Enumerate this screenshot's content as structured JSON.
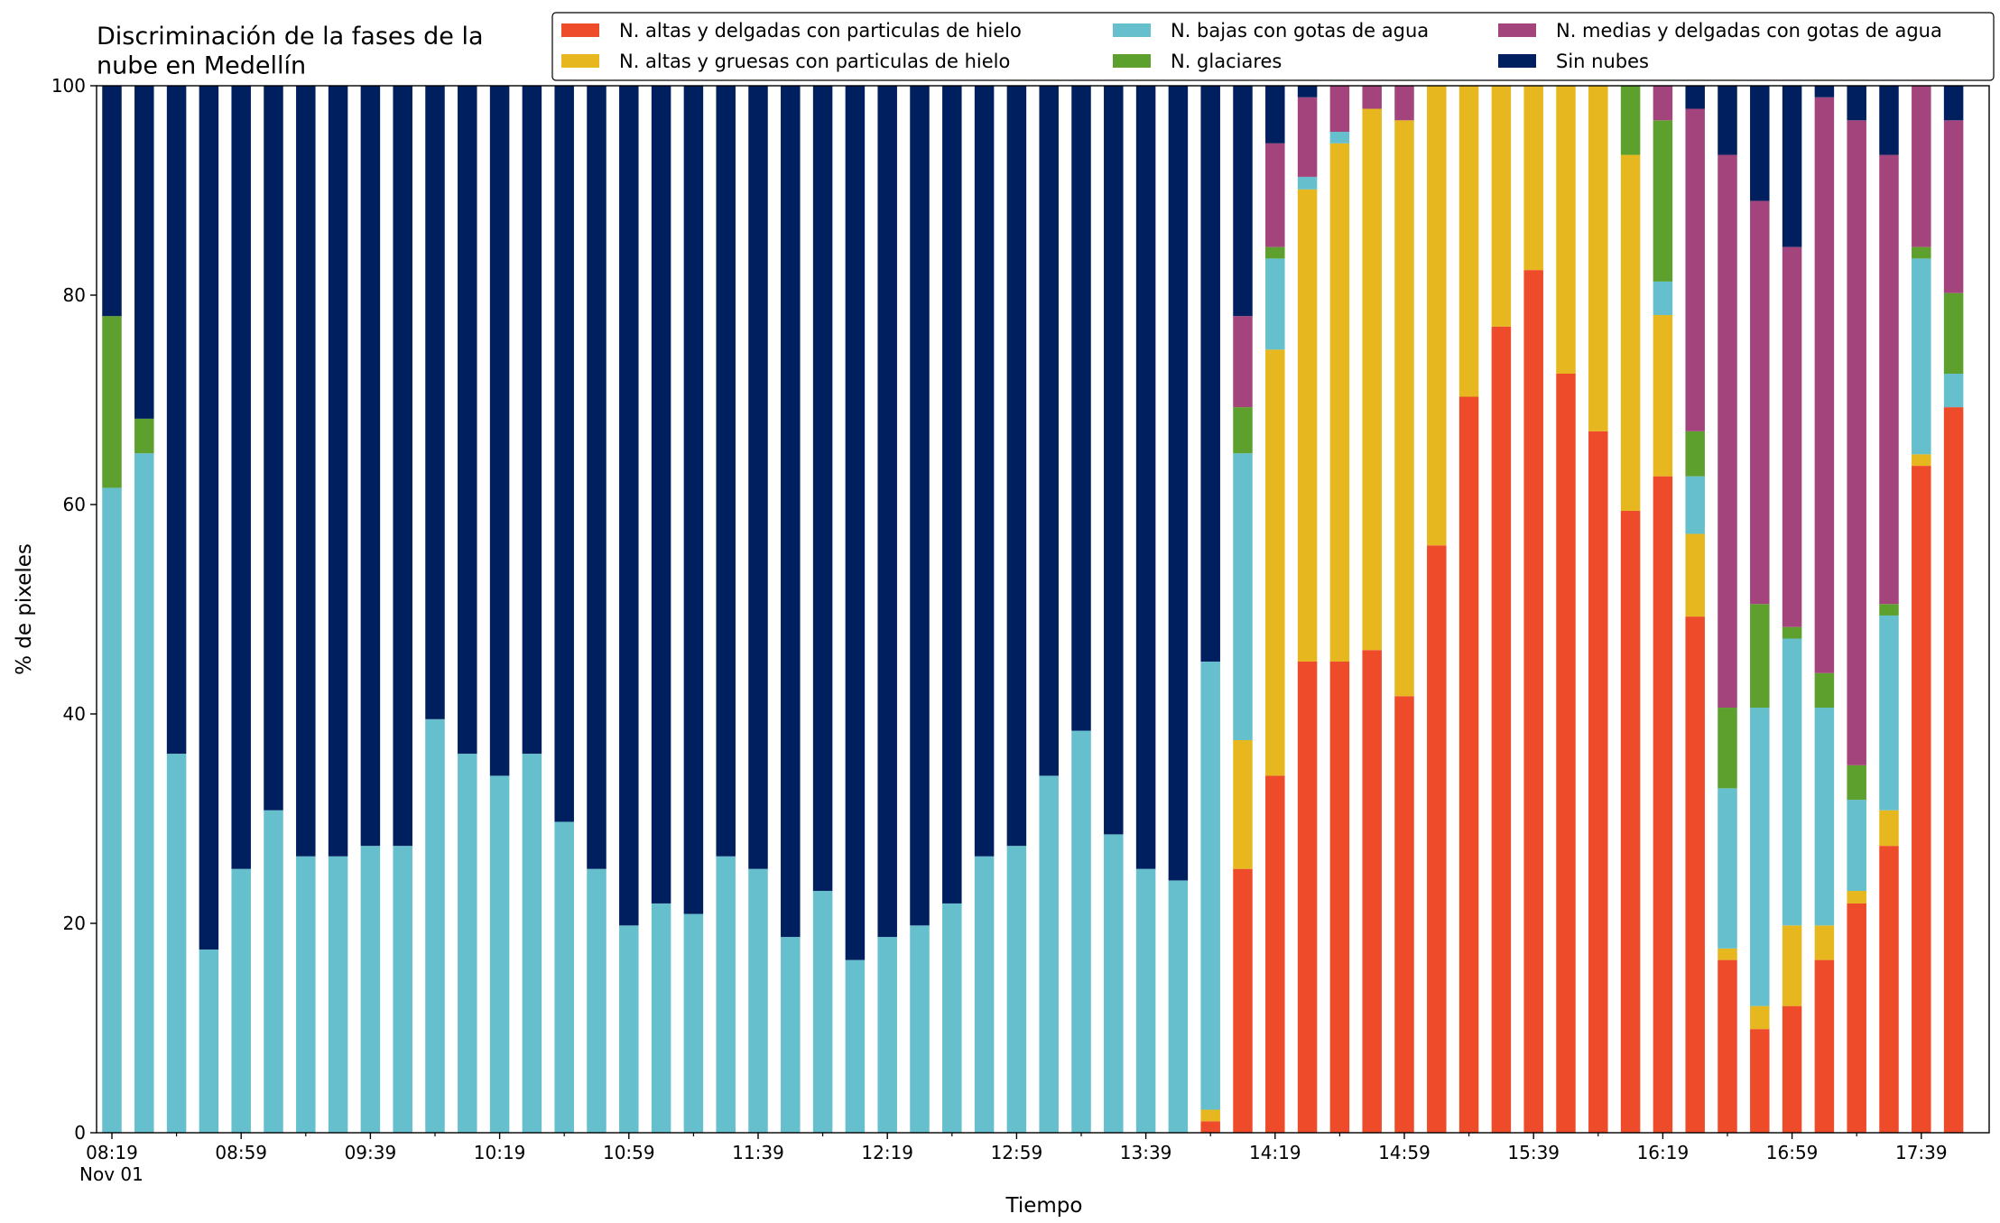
{
  "chart_data": {
    "type": "stacked_bar",
    "title": "Discriminación de la fases de la\nnube en Medellín",
    "x_label": "Tiempo",
    "y_label": "% de pixeles",
    "x_sublabel": "Nov 01",
    "categories": [
      "08:19",
      null,
      null,
      null,
      "08:59",
      null,
      null,
      null,
      "09:39",
      null,
      null,
      null,
      "10:19",
      null,
      null,
      null,
      "10:59",
      null,
      null,
      null,
      "11:39",
      null,
      null,
      null,
      "12:19",
      null,
      null,
      null,
      "12:59",
      null,
      null,
      null,
      "13:39",
      null,
      null,
      null,
      "14:19",
      null,
      null,
      null,
      "14:59",
      null,
      null,
      null,
      "15:39",
      null,
      null,
      null,
      "16:19",
      null,
      null,
      null,
      "16:59",
      null,
      null,
      null,
      "17:39",
      null
    ],
    "ylim": [
      0,
      100
    ],
    "yticks": [
      0,
      20,
      40,
      60,
      80,
      100
    ],
    "grid": false,
    "legend": "top-right",
    "series": [
      {
        "name": "N. altas y delgadas con particulas de hielo",
        "color": "#ee4b2b",
        "values": [
          0,
          0,
          0,
          0,
          0,
          0,
          0,
          0,
          0,
          0,
          0,
          0,
          0,
          0,
          0,
          0,
          0,
          0,
          0,
          0,
          0,
          0,
          0,
          0,
          0,
          0,
          0,
          0,
          0,
          0,
          0,
          0,
          0,
          0,
          1.1,
          25.2,
          34.1,
          45,
          45,
          46.1,
          41.7,
          56.1,
          70.3,
          77,
          82.4,
          72.5,
          67,
          59.4,
          62.7,
          49.3,
          16.5,
          9.9,
          12.1,
          16.5,
          21.9,
          27.4,
          63.7,
          69.3
        ]
      },
      {
        "name": "N. altas y gruesas con particulas de hielo",
        "color": "#e6b71e",
        "values": [
          0,
          0,
          0,
          0,
          0,
          0,
          0,
          0,
          0,
          0,
          0,
          0,
          0,
          0,
          0,
          0,
          0,
          0,
          0,
          0,
          0,
          0,
          0,
          0,
          0,
          0,
          0,
          0,
          0,
          0,
          0,
          0,
          0,
          0,
          1.1,
          12.3,
          40.7,
          45.1,
          49.5,
          51.7,
          55,
          43.9,
          29.7,
          23,
          17.6,
          27.5,
          33,
          34,
          15.4,
          7.9,
          1.1,
          2.2,
          7.7,
          3.3,
          1.2,
          3.4,
          1.1,
          0
        ]
      },
      {
        "name": "N. bajas con gotas de agua",
        "color": "#66bfcc",
        "values": [
          61.6,
          64.9,
          36.2,
          17.5,
          25.2,
          30.8,
          26.4,
          26.4,
          27.4,
          27.4,
          39.5,
          36.2,
          34.1,
          36.2,
          29.7,
          25.2,
          19.8,
          21.9,
          20.9,
          26.4,
          25.2,
          18.7,
          23.1,
          16.5,
          18.7,
          19.8,
          21.9,
          26.4,
          27.4,
          34.1,
          38.4,
          28.5,
          25.2,
          24.1,
          42.8,
          27.4,
          8.7,
          1.2,
          1.1,
          0,
          0,
          0,
          0,
          0,
          0,
          0,
          0,
          0,
          3.2,
          5.5,
          15.3,
          28.5,
          27.4,
          20.8,
          8.7,
          18.6,
          18.7,
          3.2
        ]
      },
      {
        "name": "N. glaciares",
        "color": "#5da02e",
        "values": [
          16.4,
          3.3,
          0,
          0,
          0,
          0,
          0,
          0,
          0,
          0,
          0,
          0,
          0,
          0,
          0,
          0,
          0,
          0,
          0,
          0,
          0,
          0,
          0,
          0,
          0,
          0,
          0,
          0,
          0,
          0,
          0,
          0,
          0,
          0,
          0,
          4.4,
          1.1,
          0,
          0,
          0,
          0,
          0,
          0,
          0,
          0,
          0,
          0,
          6.6,
          15.4,
          4.3,
          7.7,
          9.9,
          1.1,
          3.3,
          3.3,
          1.1,
          1.1,
          7.7
        ]
      },
      {
        "name": "N. medias y delgadas con gotas de agua",
        "color": "#a3457c",
        "values": [
          0,
          0,
          0,
          0,
          0,
          0,
          0,
          0,
          0,
          0,
          0,
          0,
          0,
          0,
          0,
          0,
          0,
          0,
          0,
          0,
          0,
          0,
          0,
          0,
          0,
          0,
          0,
          0,
          0,
          0,
          0,
          0,
          0,
          0,
          0,
          8.7,
          9.9,
          7.6,
          4.4,
          2.2,
          3.3,
          0,
          0,
          0,
          0,
          0,
          0,
          0,
          3.3,
          30.8,
          52.8,
          38.5,
          36.3,
          55,
          61.6,
          42.9,
          15.4,
          16.5
        ]
      },
      {
        "name": "Sin nubes",
        "color": "#001f5f",
        "values": [
          22,
          31.8,
          63.8,
          82.5,
          74.8,
          69.2,
          73.6,
          73.6,
          72.6,
          72.6,
          60.5,
          63.8,
          65.9,
          63.8,
          70.3,
          74.8,
          80.2,
          78.1,
          79.1,
          73.6,
          74.8,
          81.3,
          76.9,
          83.5,
          81.3,
          80.2,
          78.1,
          73.6,
          72.6,
          65.9,
          61.6,
          71.5,
          74.8,
          75.9,
          55,
          22,
          5.5,
          1.1,
          0,
          0,
          0,
          0,
          0,
          0,
          0,
          0,
          0,
          0,
          0,
          2.2,
          6.6,
          11,
          15.4,
          1.1,
          3.3,
          6.6,
          0,
          3.3
        ]
      }
    ]
  }
}
